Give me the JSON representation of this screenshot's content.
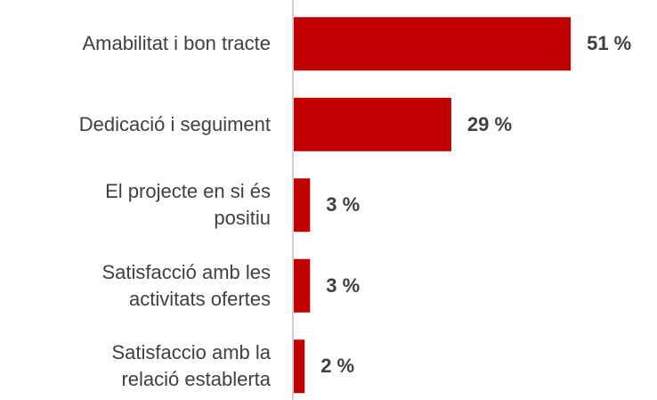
{
  "chart_data": {
    "type": "bar",
    "orientation": "horizontal",
    "categories": [
      "Amabilitat i bon tracte",
      "Dedicació i seguiment",
      "El projecte en si és\npositiu",
      "Satisfacció amb les\nactivitats ofertes",
      "Satisfaccio amb la\nrelació establerta"
    ],
    "values": [
      51,
      29,
      3,
      3,
      2
    ],
    "value_labels": [
      "51 %",
      "29 %",
      "3 %",
      "3 %",
      "2 %"
    ],
    "color": "#c00000"
  }
}
